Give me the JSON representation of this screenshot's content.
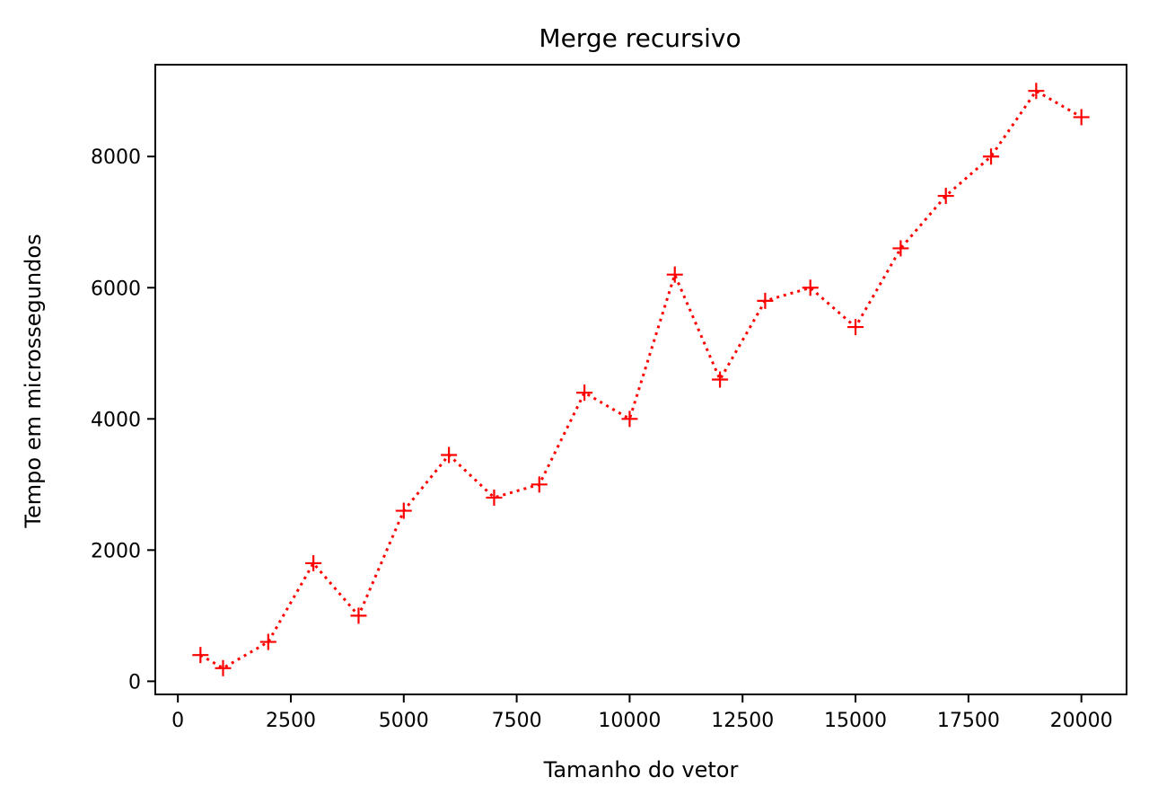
{
  "chart_data": {
    "type": "line",
    "title": "Merge recursivo",
    "xlabel": "Tamanho do vetor",
    "ylabel": "Tempo em microssegundos",
    "xlim": [
      -500,
      21000
    ],
    "ylim": [
      -200,
      9400
    ],
    "xticks": [
      0,
      2500,
      5000,
      7500,
      10000,
      12500,
      15000,
      17500,
      20000
    ],
    "yticks": [
      0,
      2000,
      4000,
      6000,
      8000
    ],
    "grid": false,
    "legend": "none",
    "series": [
      {
        "color": "#ff0000",
        "line_style": "dotted",
        "marker": "plus",
        "x": [
          500,
          1000,
          2000,
          3000,
          4000,
          5000,
          6000,
          7000,
          8000,
          9000,
          10000,
          11000,
          12000,
          13000,
          14000,
          15000,
          16000,
          17000,
          18000,
          19000,
          20000
        ],
        "y": [
          400,
          200,
          600,
          1800,
          1000,
          2600,
          3450,
          2800,
          3000,
          4400,
          4000,
          6200,
          4600,
          5800,
          6000,
          5400,
          6600,
          7400,
          8000,
          9000,
          8600
        ]
      }
    ]
  }
}
